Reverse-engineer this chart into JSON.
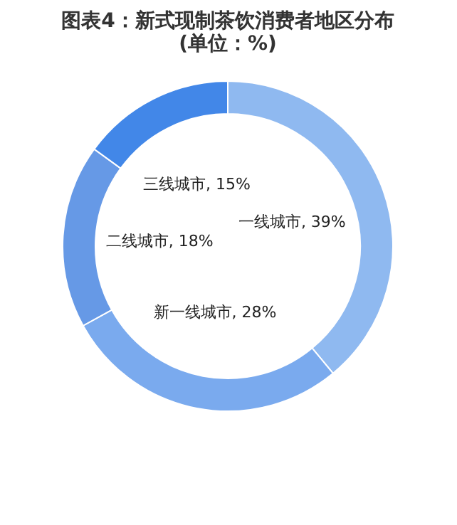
{
  "chart_data": {
    "type": "donut",
    "title": "图表4：新式现制茶饮消费者地区分布\n(单位：%)",
    "categories": [
      "一线城市",
      "新一线城市",
      "二线城市",
      "三线城市"
    ],
    "values": [
      39,
      28,
      18,
      15
    ],
    "colors": [
      "#8fb9f0",
      "#7aaaee",
      "#6699e6",
      "#4287e8"
    ],
    "value_labels": [
      "39%",
      "28%",
      "18%",
      "15%"
    ],
    "legend": false
  }
}
